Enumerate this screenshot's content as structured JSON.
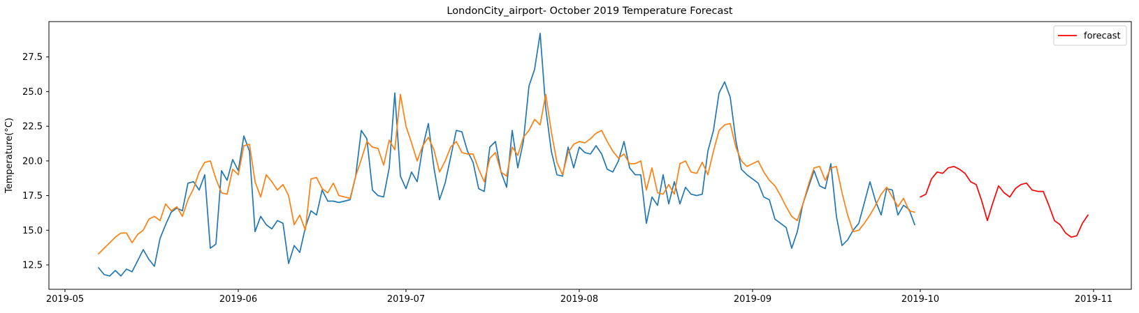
{
  "figure": {
    "title": "LondonCity_airport- October 2019 Temperature Forecast",
    "ylabel": "Temperature(°C)",
    "legend": {
      "items": [
        {
          "label": "forecast",
          "color": "#ff0000"
        }
      ]
    }
  },
  "chart_data": {
    "type": "line",
    "title": "LondonCity_airport- October 2019 Temperature Forecast",
    "xlabel": "",
    "ylabel": "Temperature(°C)",
    "x_ticks": [
      "2019-05",
      "2019-06",
      "2019-07",
      "2019-08",
      "2019-09",
      "2019-10",
      "2019-11"
    ],
    "x_tick_dates": [
      "2019-05-01",
      "2019-06-01",
      "2019-07-01",
      "2019-08-01",
      "2019-09-01",
      "2019-10-01",
      "2019-11-01"
    ],
    "y_ticks": [
      12.5,
      15.0,
      17.5,
      20.0,
      22.5,
      25.0,
      27.5
    ],
    "ylim": [
      10.7,
      30.1
    ],
    "xlim": [
      "2019-04-28",
      "2019-11-08"
    ],
    "grid": false,
    "legend_position": "upper right",
    "legend_entries": [
      "forecast"
    ],
    "sampling": "daily",
    "series": [
      {
        "name": "blue",
        "color": "#1f77b4",
        "in_legend": false,
        "start_date": "2019-05-07",
        "values": [
          12.3,
          11.8,
          11.7,
          12.1,
          11.7,
          12.2,
          12.0,
          12.8,
          13.6,
          12.9,
          12.4,
          14.4,
          15.4,
          16.3,
          16.6,
          16.4,
          18.4,
          18.5,
          17.9,
          19.0,
          13.7,
          14.0,
          19.3,
          18.6,
          20.1,
          19.3,
          21.8,
          20.7,
          14.9,
          16.0,
          15.4,
          15.1,
          15.7,
          15.5,
          12.6,
          13.9,
          13.4,
          15.2,
          16.4,
          16.1,
          17.9,
          17.1,
          17.1,
          17.0,
          17.1,
          17.2,
          18.9,
          22.2,
          21.6,
          17.9,
          17.5,
          17.4,
          19.5,
          24.9,
          18.9,
          18.0,
          19.2,
          18.5,
          21.0,
          22.7,
          19.5,
          17.2,
          18.4,
          20.3,
          22.2,
          22.1,
          20.7,
          19.9,
          18.0,
          17.8,
          21.0,
          21.4,
          19.2,
          18.1,
          22.2,
          19.5,
          21.4,
          25.4,
          26.6,
          29.2,
          23.8,
          20.7,
          19.0,
          18.9,
          21.0,
          19.5,
          21.0,
          20.6,
          20.5,
          21.1,
          20.5,
          19.4,
          19.2,
          20.0,
          21.4,
          19.5,
          19.0,
          19.0,
          15.5,
          17.4,
          16.8,
          19.0,
          16.9,
          18.5,
          16.9,
          18.1,
          17.6,
          17.5,
          17.6,
          20.7,
          22.2,
          24.9,
          25.7,
          24.6,
          21.5,
          19.4,
          19.0,
          18.7,
          18.4,
          17.4,
          17.2,
          15.8,
          15.5,
          15.2,
          13.7,
          14.9,
          16.9,
          18.1,
          19.3,
          18.2,
          18.0,
          19.8,
          16.0,
          13.9,
          14.3,
          15.0,
          15.5,
          17.0,
          18.5,
          17.1,
          16.1,
          18.0,
          17.9,
          16.1,
          16.8,
          16.5,
          15.4
        ]
      },
      {
        "name": "orange",
        "color": "#ff7f0e",
        "in_legend": false,
        "start_date": "2019-05-07",
        "values": [
          13.3,
          13.7,
          14.1,
          14.5,
          14.8,
          14.8,
          14.1,
          14.7,
          15.0,
          15.8,
          16.0,
          15.7,
          16.9,
          16.4,
          16.7,
          16.0,
          17.2,
          18.0,
          19.2,
          19.9,
          20.0,
          18.7,
          17.7,
          17.6,
          19.4,
          19.0,
          21.1,
          21.2,
          18.5,
          17.4,
          19.0,
          18.5,
          17.9,
          18.3,
          17.5,
          15.4,
          16.1,
          15.0,
          18.7,
          18.8,
          18.0,
          17.7,
          18.4,
          17.5,
          17.4,
          17.3,
          18.9,
          20.1,
          21.4,
          21.0,
          20.9,
          19.7,
          21.5,
          20.8,
          24.8,
          22.5,
          21.3,
          20.0,
          21.1,
          21.7,
          20.8,
          19.2,
          20.0,
          21.0,
          21.4,
          20.6,
          20.5,
          20.5,
          19.4,
          18.5,
          20.2,
          20.6,
          19.2,
          18.9,
          21.0,
          20.4,
          21.7,
          22.2,
          23.0,
          22.6,
          24.8,
          22.1,
          19.9,
          19.0,
          20.6,
          21.2,
          21.4,
          21.3,
          21.6,
          22.0,
          22.2,
          21.4,
          20.7,
          20.2,
          20.5,
          19.8,
          19.8,
          20.0,
          17.9,
          19.5,
          17.7,
          17.6,
          18.3,
          17.6,
          19.8,
          20.0,
          19.2,
          19.1,
          19.9,
          19.0,
          20.7,
          22.2,
          22.6,
          22.7,
          21.0,
          20.0,
          19.6,
          19.8,
          20.0,
          19.2,
          18.6,
          18.2,
          17.5,
          16.7,
          16.0,
          15.7,
          16.9,
          18.3,
          19.5,
          19.6,
          18.6,
          19.5,
          19.6,
          17.7,
          16.1,
          14.9,
          15.0,
          15.5,
          16.1,
          16.8,
          17.6,
          18.1,
          17.4,
          16.7,
          17.3,
          16.4,
          16.3
        ]
      },
      {
        "name": "forecast",
        "color": "#ff0000",
        "in_legend": true,
        "start_date": "2019-10-01",
        "values": [
          17.4,
          17.6,
          18.7,
          19.2,
          19.1,
          19.5,
          19.6,
          19.4,
          19.1,
          18.5,
          18.3,
          17.1,
          15.7,
          17.0,
          18.2,
          17.7,
          17.4,
          18.0,
          18.3,
          18.4,
          17.9,
          17.8,
          17.8,
          16.8,
          15.7,
          15.4,
          14.8,
          14.5,
          14.6,
          15.5,
          16.1
        ]
      }
    ]
  }
}
